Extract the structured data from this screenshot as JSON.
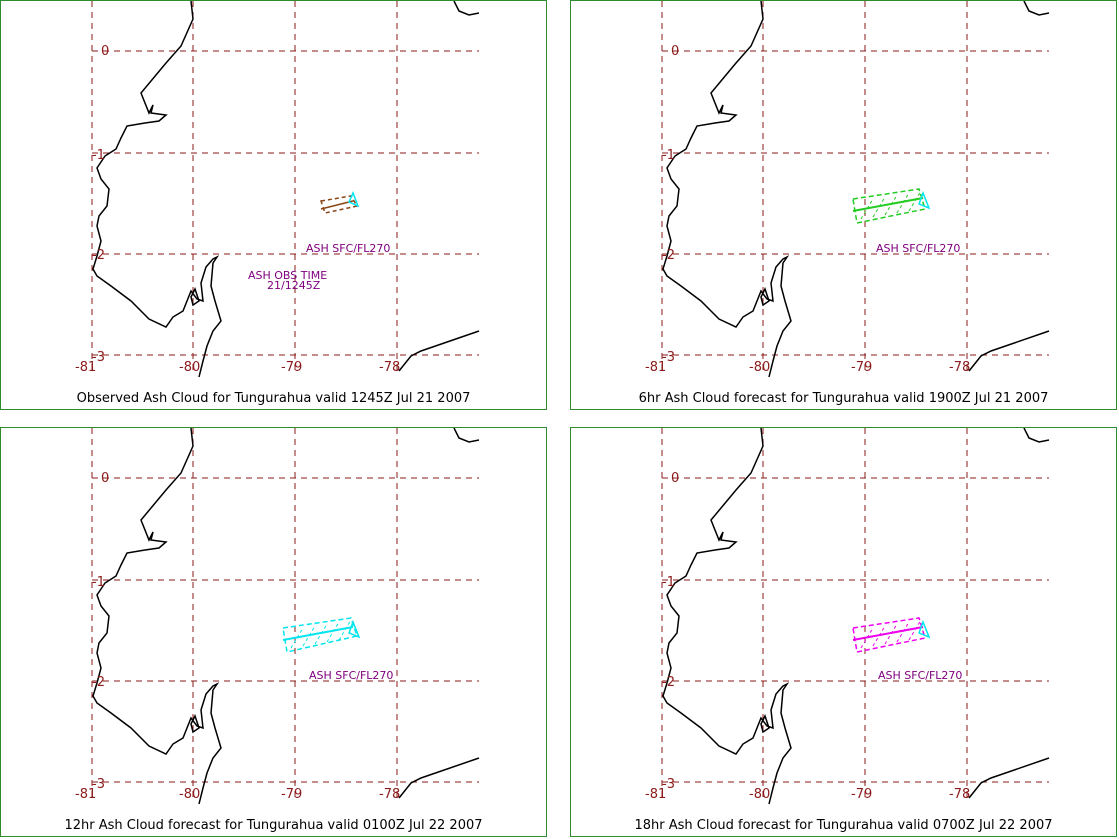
{
  "panels": [
    {
      "caption": "Observed Ash Cloud for Tungurahua valid 1245Z Jul 21 2007",
      "cloud_color": "#8b4513",
      "label_lines": [
        "ASH SFC/FL270",
        "ASH OBS TIME",
        "21/1245Z"
      ]
    },
    {
      "caption": "6hr Ash Cloud forecast for Tungurahua valid 1900Z Jul 21 2007",
      "cloud_color": "#22cc22",
      "label_lines": [
        "ASH SFC/FL270"
      ]
    },
    {
      "caption": "12hr Ash Cloud forecast for Tungurahua valid 0100Z Jul 22 2007",
      "cloud_color": "#00e5ee",
      "label_lines": [
        "ASH SFC/FL270"
      ]
    },
    {
      "caption": "18hr Ash Cloud forecast for Tungurahua valid 0700Z Jul 22 2007",
      "cloud_color": "#ee00ee",
      "label_lines": [
        "ASH SFC/FL270"
      ]
    }
  ],
  "lon_ticks": [
    "-81",
    "-80",
    "-79",
    "-78"
  ],
  "lat_ticks": [
    "0",
    "-1",
    "-2",
    "-3"
  ],
  "volcano_marker_color": "#00e5ee"
}
